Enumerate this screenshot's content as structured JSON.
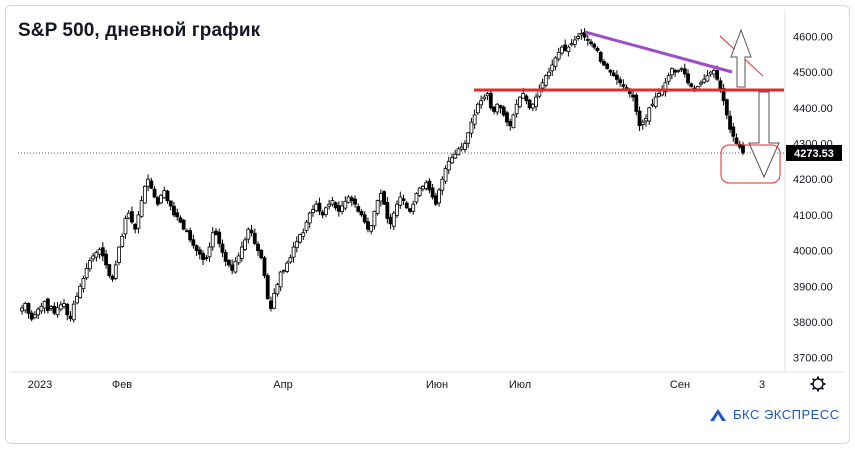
{
  "chart_data": {
    "type": "candlestick",
    "title": "S&P 500, дневной график",
    "y_ticks": [
      3700,
      3800,
      3900,
      4000,
      4100,
      4200,
      4300,
      4400,
      4500,
      4600
    ],
    "y_tick_labels": [
      "3700.00",
      "3800.00",
      "3900.00",
      "4000.00",
      "4100.00",
      "4200.00",
      "4300.00",
      "4400.00",
      "4500.00",
      "4600.00"
    ],
    "ylim": [
      3660,
      4660
    ],
    "x_labels": [
      "2023",
      "Фев",
      "Апр",
      "Июн",
      "Июл",
      "Сен",
      "3"
    ],
    "last_price": 4273.53,
    "last_price_label": "4273.53",
    "close_series": [
      3839,
      3852,
      3824,
      3808,
      3820,
      3836,
      3844,
      3858,
      3832,
      3843,
      3825,
      3840,
      3848,
      3852,
      3820,
      3810,
      3850,
      3872,
      3900,
      3922,
      3950,
      3972,
      3985,
      3995,
      4003,
      3985,
      3960,
      3930,
      3920,
      3960,
      4010,
      4040,
      4090,
      4105,
      4080,
      4060,
      4100,
      4140,
      4180,
      4200,
      4175,
      4150,
      4130,
      4155,
      4168,
      4140,
      4125,
      4100,
      4095,
      4080,
      4060,
      4055,
      4030,
      4015,
      4000,
      3990,
      3975,
      3980,
      4010,
      4050,
      4045,
      4020,
      3995,
      3970,
      3960,
      3945,
      3970,
      3985,
      4010,
      4030,
      4060,
      4050,
      4020,
      4000,
      3980,
      3930,
      3865,
      3838,
      3880,
      3905,
      3940,
      3945,
      3965,
      3980,
      4010,
      4025,
      4045,
      4050,
      4080,
      4105,
      4115,
      4130,
      4110,
      4100,
      4120,
      4130,
      4140,
      4120,
      4110,
      4125,
      4138,
      4150,
      4140,
      4130,
      4110,
      4100,
      4080,
      4060,
      4070,
      4110,
      4140,
      4160,
      4130,
      4090,
      4075,
      4105,
      4130,
      4150,
      4140,
      4120,
      4110,
      4130,
      4160,
      4175,
      4180,
      4190,
      4170,
      4150,
      4130,
      4170,
      4200,
      4230,
      4250,
      4260,
      4270,
      4285,
      4290,
      4300,
      4330,
      4360,
      4380,
      4410,
      4420,
      4430,
      4440,
      4400,
      4390,
      4410,
      4400,
      4380,
      4360,
      4350,
      4380,
      4410,
      4430,
      4440,
      4420,
      4400,
      4410,
      4430,
      4450,
      4470,
      4490,
      4500,
      4520,
      4540,
      4555,
      4570,
      4560,
      4570,
      4580,
      4590,
      4600,
      4608,
      4598,
      4590,
      4580,
      4570,
      4560,
      4530,
      4520,
      4510,
      4500,
      4490,
      4480,
      4470,
      4460,
      4450,
      4440,
      4430,
      4390,
      4350,
      4360,
      4370,
      4400,
      4410,
      4430,
      4440,
      4450,
      4470,
      4490,
      4510,
      4500,
      4505,
      4510,
      4495,
      4470,
      4460,
      4450,
      4460,
      4470,
      4480,
      4490,
      4500,
      4505,
      4480,
      4450,
      4420,
      4380,
      4340,
      4320,
      4300,
      4290,
      4273.53
    ]
  }
}
